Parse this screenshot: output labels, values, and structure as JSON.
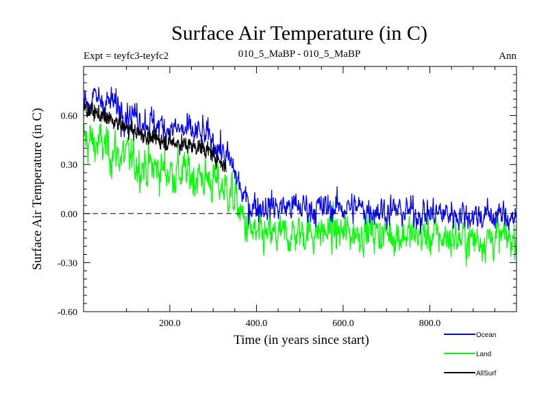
{
  "chart_data": {
    "type": "line",
    "title": "Surface Air Temperature (in C)",
    "header_left": "Expt = teyfc3-teyfc2",
    "header_center": "010_5_MaBP - 010_5_MaBP",
    "header_right": "Ann",
    "xlabel": "Time (in years since start)",
    "ylabel": "Surface Air Temperature (in C)",
    "xlim": [
      1,
      1000
    ],
    "ylim": [
      -0.6,
      0.9
    ],
    "x_ticks": [
      200,
      400,
      600,
      800
    ],
    "x_tick_labels": [
      "200.0",
      "400.0",
      "600.0",
      "800.0"
    ],
    "y_ticks": [
      -0.6,
      -0.3,
      0.0,
      0.3,
      0.6
    ],
    "y_tick_labels": [
      "-0.60",
      "-0.30",
      "0.00",
      "0.30",
      "0.60"
    ],
    "zero_line": "dashed",
    "colors": {
      "Ocean": "#0000ff",
      "Land": "#00ff00",
      "AllSurf": "#000000"
    },
    "series": [
      {
        "name": "Ocean",
        "color": "#0000ff",
        "x": [
          1,
          40,
          80,
          120,
          160,
          200,
          240,
          280,
          310,
          330,
          350,
          370,
          385,
          400,
          450,
          500,
          550,
          600,
          650,
          700,
          750,
          800,
          850,
          900,
          950,
          1000
        ],
        "values": [
          0.68,
          0.7,
          0.66,
          0.6,
          0.55,
          0.52,
          0.5,
          0.48,
          0.42,
          0.35,
          0.25,
          0.1,
          0.05,
          0.05,
          0.04,
          0.04,
          0.03,
          0.04,
          0.03,
          0.02,
          0.01,
          0.0,
          0.0,
          -0.01,
          -0.01,
          -0.02
        ]
      },
      {
        "name": "Land",
        "color": "#00ff00",
        "x": [
          1,
          40,
          80,
          120,
          160,
          200,
          240,
          280,
          310,
          330,
          350,
          370,
          385,
          400,
          450,
          500,
          550,
          600,
          650,
          700,
          750,
          800,
          850,
          900,
          950,
          1000
        ],
        "values": [
          0.45,
          0.42,
          0.36,
          0.32,
          0.28,
          0.26,
          0.24,
          0.22,
          0.18,
          0.15,
          0.1,
          -0.05,
          -0.1,
          -0.14,
          -0.14,
          -0.12,
          -0.11,
          -0.12,
          -0.11,
          -0.12,
          -0.13,
          -0.14,
          -0.15,
          -0.16,
          -0.15,
          -0.15
        ]
      },
      {
        "name": "AllSurf",
        "color": "#000000",
        "x": [
          1,
          40,
          80,
          120,
          160,
          200,
          240,
          280,
          310,
          330
        ],
        "values": [
          0.65,
          0.6,
          0.55,
          0.5,
          0.46,
          0.44,
          0.42,
          0.4,
          0.34,
          0.28
        ]
      }
    ],
    "legend": [
      {
        "label": "Ocean",
        "color": "#0000ff"
      },
      {
        "label": "Land",
        "color": "#00ff00"
      },
      {
        "label": "AllSurf",
        "color": "#000000"
      }
    ],
    "legend_position": "bottom-right"
  }
}
